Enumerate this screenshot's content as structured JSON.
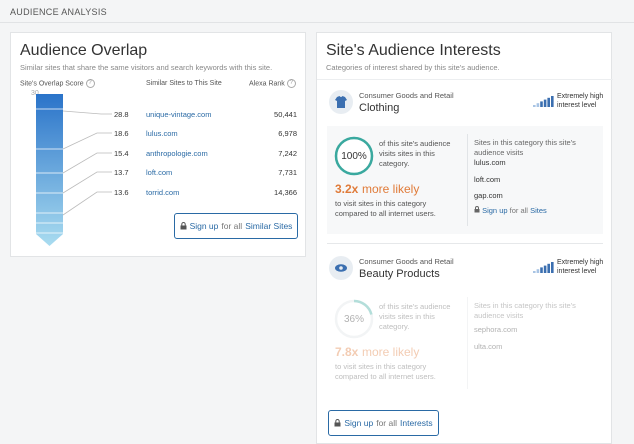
{
  "header": {
    "title": "AUDIENCE ANALYSIS"
  },
  "overlap": {
    "title": "Audience Overlap",
    "subtitle": "Similar sites that share the same visitors and search keywords with this site.",
    "columns": {
      "score": "Site's Overlap Score",
      "sites": "Similar Sites to This Site",
      "rank": "Alexa Rank"
    },
    "scale_max": "30",
    "rows": [
      {
        "score": "28.8",
        "site": "unique-vintage.com",
        "rank": "50,441"
      },
      {
        "score": "18.6",
        "site": "lulus.com",
        "rank": "6,978"
      },
      {
        "score": "15.4",
        "site": "anthropologie.com",
        "rank": "7,242"
      },
      {
        "score": "13.7",
        "site": "loft.com",
        "rank": "7,731"
      },
      {
        "score": "13.6",
        "site": "torrid.com",
        "rank": "14,366"
      }
    ],
    "button": {
      "action": "Sign up",
      "middle": "for all",
      "target": "Similar Sites"
    }
  },
  "interests": {
    "title": "Site's Audience Interests",
    "subtitle": "Categories of interest shared by this site's audience.",
    "categories": [
      {
        "group": "Consumer Goods and Retail",
        "name": "Clothing",
        "level": "Extremely high interest level",
        "share": "100%",
        "share_text": "of this site's audience visits sites in this category.",
        "likely_value": "3.2x",
        "likely_text": "more likely",
        "compare_text": "to visit sites in this category compared to all internet users.",
        "sites_header": "Sites in this category this site's audience visits",
        "sites": [
          "lulus.com",
          "loft.com",
          "gap.com"
        ],
        "signup": {
          "action": "Sign up",
          "middle": "for all",
          "target": "Sites"
        }
      },
      {
        "group": "Consumer Goods and Retail",
        "name": "Beauty Products",
        "level": "Extremely high interest level",
        "share": "36%",
        "share_text": "of this site's audience visits sites in this category.",
        "likely_value": "7.8x",
        "likely_text": "more likely",
        "compare_text": "to visit sites in this category compared to all internet users.",
        "sites_header": "Sites in this category this site's audience visits",
        "sites": [
          "sephora.com",
          "ulta.com"
        ]
      }
    ],
    "button": {
      "action": "Sign up",
      "middle": "for all",
      "target": "Interests"
    }
  }
}
